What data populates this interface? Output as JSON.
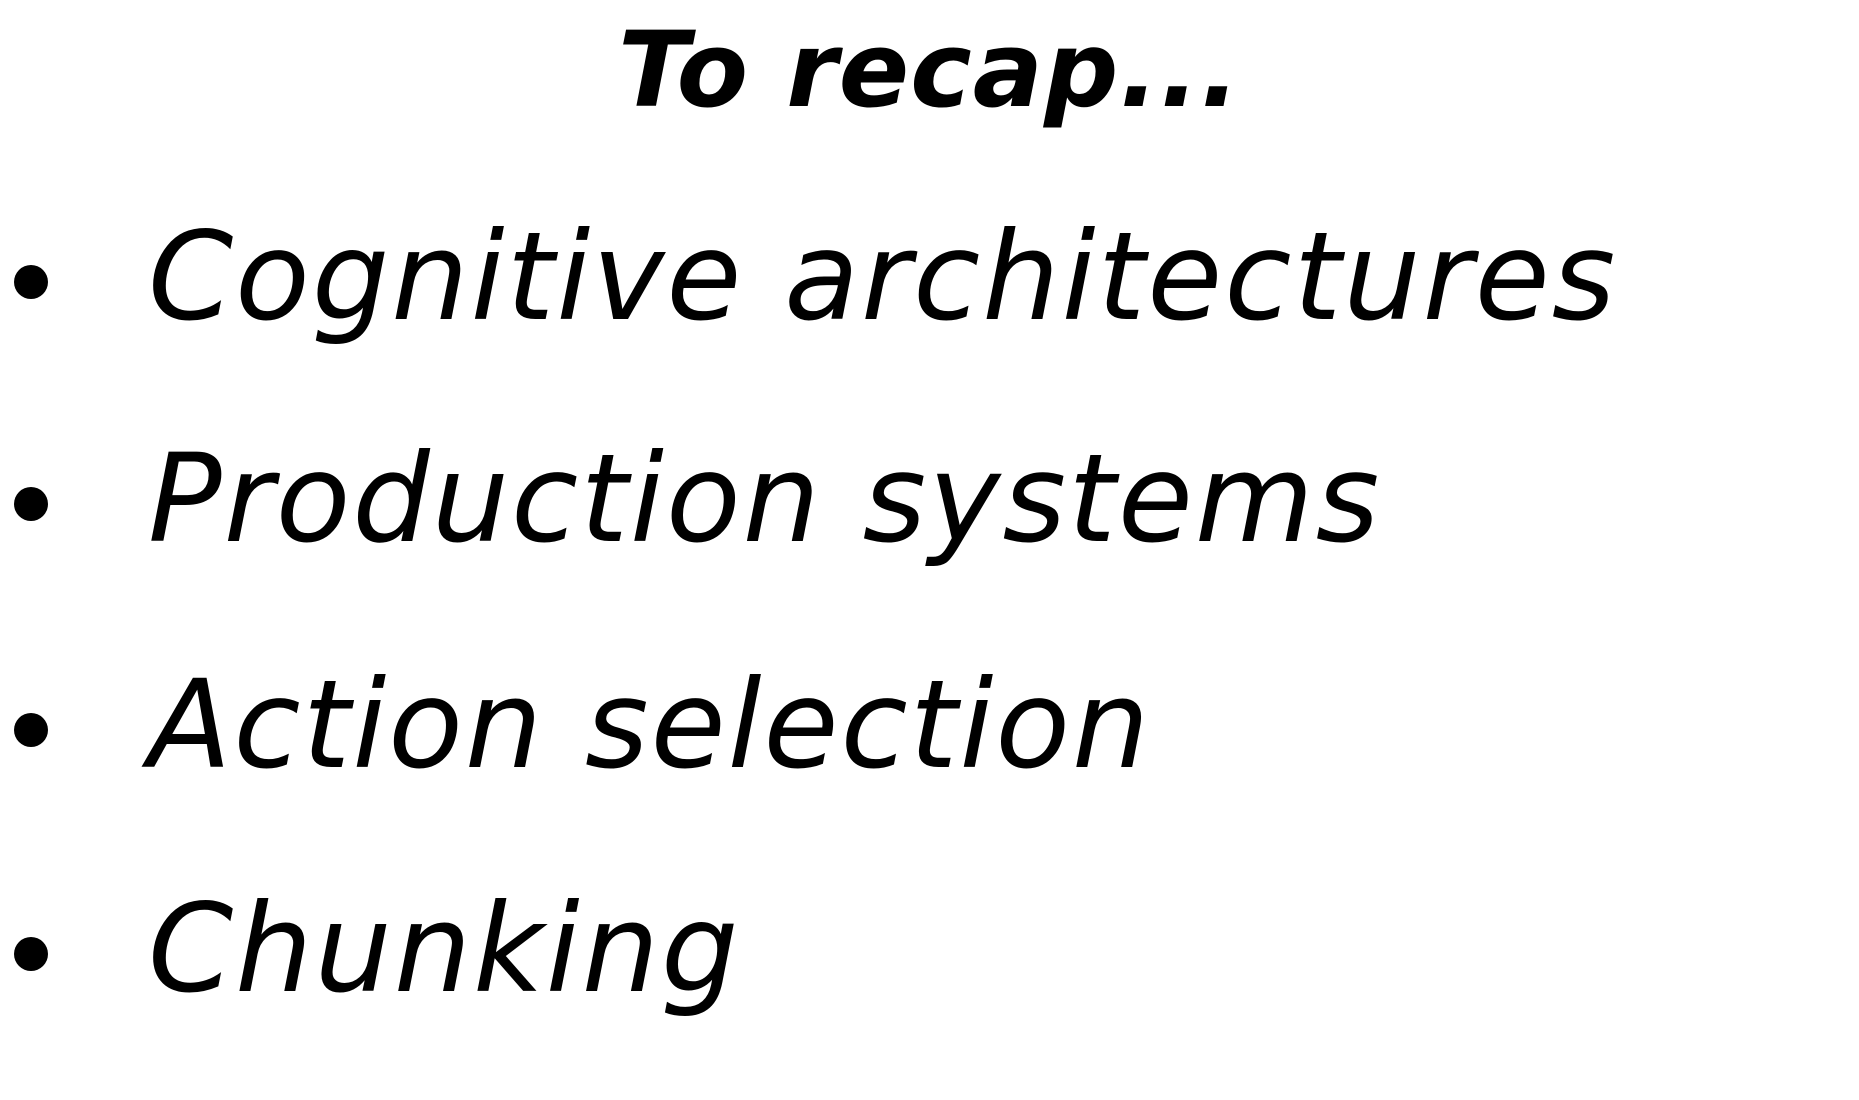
{
  "slide": {
    "title": "To recap...",
    "bullets": [
      "Cognitive architectures",
      "Production systems",
      "Action selection",
      "Chunking"
    ]
  },
  "colors": {
    "background": "#ffffff",
    "text": "#000000"
  }
}
